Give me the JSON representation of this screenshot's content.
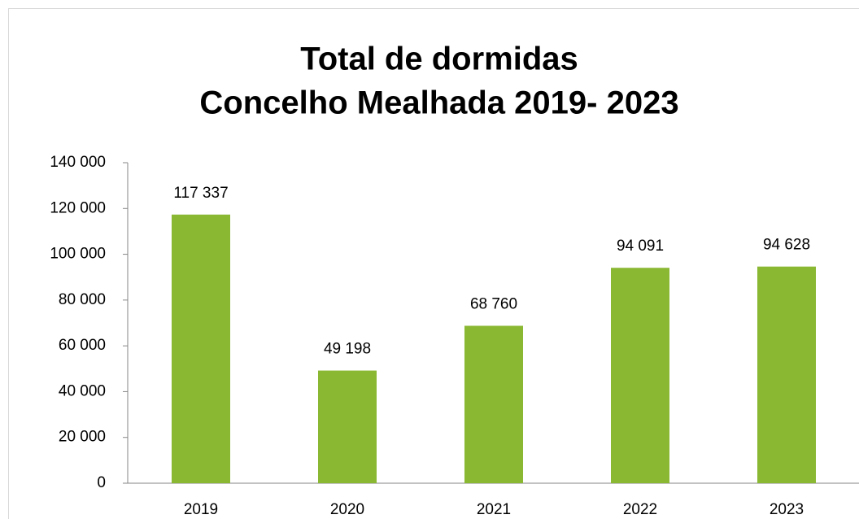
{
  "chart_data": {
    "type": "bar",
    "title": [
      "Total de dormidas",
      "Concelho Mealhada 2019- 2023"
    ],
    "categories": [
      "2019",
      "2020",
      "2021",
      "2022",
      "2023"
    ],
    "values": [
      117337,
      49198,
      68760,
      94091,
      94628
    ],
    "value_labels": [
      "117 337",
      "49 198",
      "68 760",
      "94 091",
      "94 628"
    ],
    "color": "#8ab833",
    "ylim": [
      0,
      140000
    ],
    "yticks": [
      0,
      {
        "value": 20000,
        "label": "20 000"
      },
      {
        "value": 40000,
        "label": "40 000"
      },
      {
        "value": 60000,
        "label": "60 000"
      },
      {
        "value": 80000,
        "label": "80 000"
      },
      {
        "value": 100000,
        "label": "100 000"
      },
      {
        "value": 120000,
        "label": "120 000"
      },
      {
        "value": 140000,
        "label": "140 000"
      }
    ],
    "grid": false
  }
}
